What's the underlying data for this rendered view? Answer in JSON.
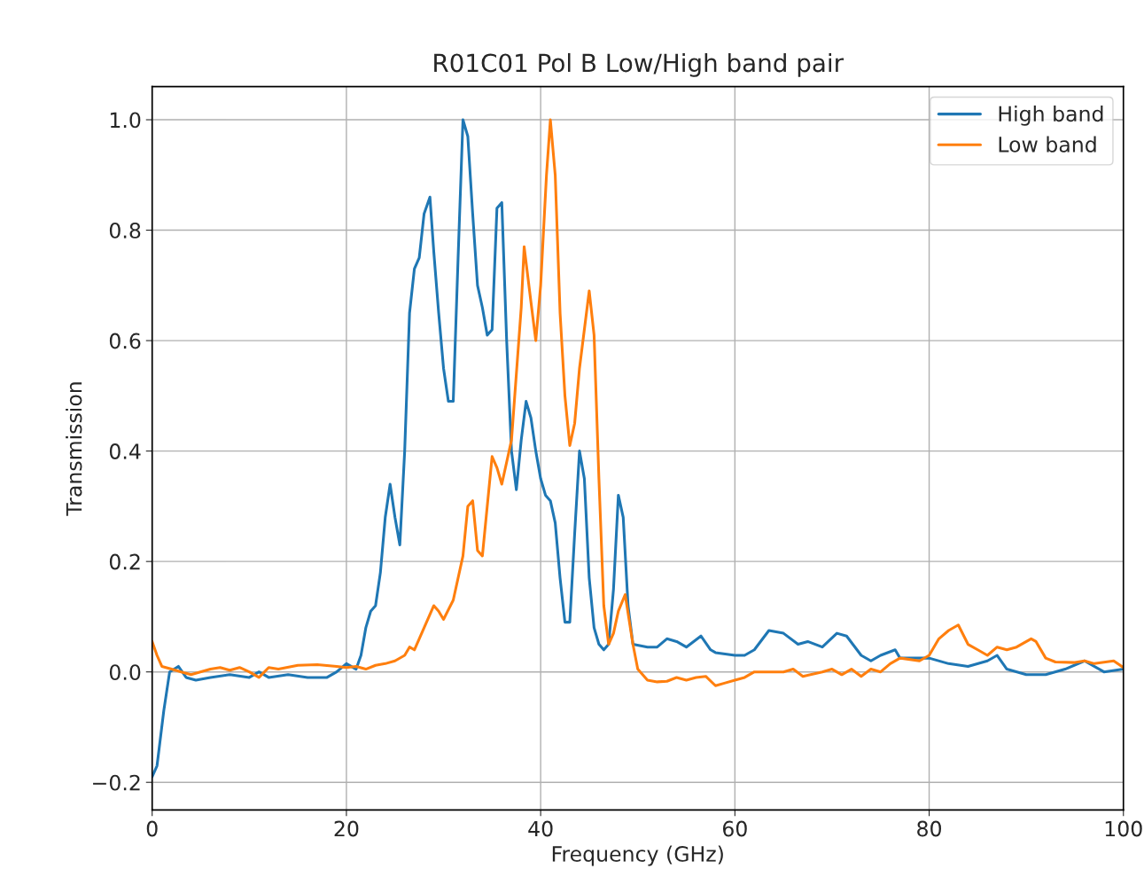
{
  "chart_data": {
    "type": "line",
    "title": "R01C01 Pol B Low/High band pair",
    "xlabel": "Frequency (GHz)",
    "ylabel": "Transmission",
    "xlim": [
      0,
      100
    ],
    "ylim": [
      -0.25,
      1.06
    ],
    "xticks": [
      0,
      20,
      40,
      60,
      80,
      100
    ],
    "yticks": [
      {
        "value": -0.2,
        "label": "−0.2"
      },
      {
        "value": 0.0,
        "label": "0.0"
      },
      {
        "value": 0.2,
        "label": "0.2"
      },
      {
        "value": 0.4,
        "label": "0.4"
      },
      {
        "value": 0.6,
        "label": "0.6"
      },
      {
        "value": 0.8,
        "label": "0.8"
      },
      {
        "value": 1.0,
        "label": "1.0"
      }
    ],
    "grid": true,
    "legend": "top right",
    "series": [
      {
        "name": "High band",
        "color": "#1f77b4",
        "x": [
          0,
          0.5,
          1.2,
          1.8,
          2.7,
          3.5,
          4.5,
          6,
          8,
          10,
          11,
          12,
          14,
          16,
          18,
          19,
          20,
          21,
          21.5,
          22,
          22.5,
          23,
          23.5,
          24,
          24.5,
          25,
          25.5,
          26,
          26.5,
          27,
          27.5,
          28,
          28.6,
          29,
          29.5,
          30,
          30.5,
          31,
          31.5,
          32,
          32.5,
          33,
          33.5,
          34,
          34.5,
          35,
          35.5,
          36,
          36.5,
          37,
          37.5,
          38,
          38.5,
          39,
          39.5,
          40,
          40.5,
          41,
          41.5,
          42,
          42.5,
          43,
          43.5,
          44,
          44.5,
          45,
          45.5,
          46,
          46.5,
          47,
          47.5,
          48,
          48.5,
          49,
          49.5,
          51,
          52,
          53,
          54,
          55,
          56.5,
          57.5,
          58,
          60,
          61,
          62,
          63.5,
          65,
          66.5,
          67.5,
          69,
          70.5,
          71.5,
          73,
          74,
          75,
          76.5,
          77,
          79,
          80,
          82,
          84,
          86,
          87,
          88,
          90,
          92,
          94,
          96,
          98,
          100
        ],
        "values": [
          -0.19,
          -0.17,
          -0.07,
          0.0,
          0.01,
          -0.01,
          -0.015,
          -0.01,
          -0.005,
          -0.01,
          0.0,
          -0.01,
          -0.005,
          -0.01,
          -0.01,
          0.0,
          0.015,
          0.005,
          0.03,
          0.08,
          0.11,
          0.12,
          0.18,
          0.28,
          0.34,
          0.28,
          0.23,
          0.4,
          0.65,
          0.73,
          0.75,
          0.83,
          0.86,
          0.76,
          0.65,
          0.55,
          0.49,
          0.49,
          0.75,
          1.0,
          0.97,
          0.83,
          0.7,
          0.66,
          0.61,
          0.62,
          0.84,
          0.85,
          0.6,
          0.4,
          0.33,
          0.42,
          0.49,
          0.46,
          0.4,
          0.35,
          0.32,
          0.31,
          0.27,
          0.17,
          0.09,
          0.09,
          0.25,
          0.4,
          0.35,
          0.17,
          0.08,
          0.05,
          0.04,
          0.05,
          0.15,
          0.32,
          0.28,
          0.12,
          0.05,
          0.045,
          0.045,
          0.06,
          0.055,
          0.045,
          0.065,
          0.04,
          0.035,
          0.03,
          0.03,
          0.04,
          0.075,
          0.07,
          0.05,
          0.055,
          0.045,
          0.07,
          0.065,
          0.03,
          0.02,
          0.03,
          0.04,
          0.025,
          0.025,
          0.025,
          0.015,
          0.01,
          0.02,
          0.03,
          0.005,
          -0.005,
          -0.005,
          0.005,
          0.02,
          0.0,
          0.005
        ]
      },
      {
        "name": "Low band",
        "color": "#ff7f0e",
        "x": [
          0,
          0.5,
          1,
          2,
          3,
          4,
          6,
          7,
          8,
          9,
          10,
          11,
          12,
          13,
          15,
          17,
          19,
          20,
          21,
          22,
          23,
          24,
          25,
          26,
          26.5,
          27,
          28,
          29,
          29.5,
          30,
          31,
          32,
          32.5,
          33,
          33.5,
          34,
          35,
          35.5,
          36,
          37,
          38,
          38.3,
          39,
          39.5,
          40,
          40.6,
          41,
          41.5,
          42,
          42.5,
          43,
          43.5,
          44,
          45,
          45.5,
          46,
          46.5,
          47,
          47.5,
          48,
          48.7,
          49.5,
          50,
          51,
          52,
          53,
          54,
          55,
          56,
          57,
          58,
          59,
          60,
          61,
          62,
          63,
          65,
          66,
          67,
          69,
          70,
          71,
          72,
          73,
          74,
          75,
          76,
          77,
          79,
          80,
          81,
          82,
          83,
          84,
          85,
          86,
          87,
          88,
          89,
          90.5,
          91,
          92,
          93,
          95,
          96,
          97,
          99,
          100
        ],
        "values": [
          0.055,
          0.03,
          0.01,
          0.005,
          0.0,
          -0.005,
          0.005,
          0.008,
          0.003,
          0.008,
          0.0,
          -0.01,
          0.008,
          0.005,
          0.012,
          0.013,
          0.01,
          0.008,
          0.01,
          0.005,
          0.012,
          0.015,
          0.02,
          0.03,
          0.045,
          0.04,
          0.08,
          0.12,
          0.11,
          0.095,
          0.13,
          0.21,
          0.3,
          0.31,
          0.22,
          0.21,
          0.39,
          0.37,
          0.34,
          0.42,
          0.66,
          0.77,
          0.67,
          0.6,
          0.7,
          0.9,
          1.0,
          0.9,
          0.65,
          0.5,
          0.41,
          0.45,
          0.55,
          0.69,
          0.61,
          0.35,
          0.12,
          0.05,
          0.07,
          0.11,
          0.14,
          0.05,
          0.005,
          -0.015,
          -0.018,
          -0.017,
          -0.01,
          -0.015,
          -0.01,
          -0.008,
          -0.025,
          -0.02,
          -0.015,
          -0.01,
          0.0,
          0.0,
          0.0,
          0.005,
          -0.008,
          0.0,
          0.005,
          -0.005,
          0.005,
          -0.008,
          0.005,
          0.0,
          0.015,
          0.025,
          0.02,
          0.03,
          0.06,
          0.075,
          0.085,
          0.05,
          0.04,
          0.03,
          0.045,
          0.04,
          0.045,
          0.06,
          0.055,
          0.025,
          0.018,
          0.017,
          0.02,
          0.015,
          0.02,
          0.008
        ]
      }
    ]
  }
}
